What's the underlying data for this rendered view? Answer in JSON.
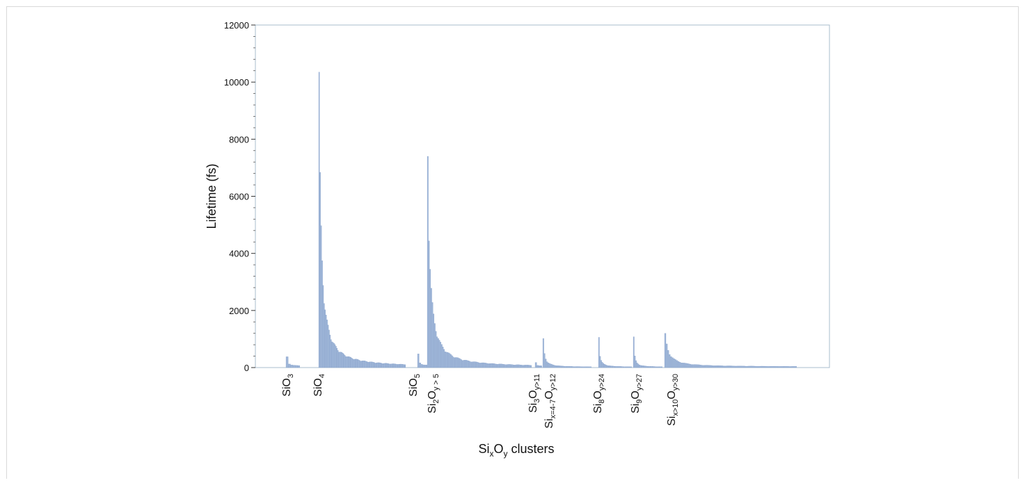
{
  "chart_data": {
    "type": "bar",
    "title": "",
    "xlabel": {
      "base": "Si",
      "sub1": "x",
      "mid": "O",
      "sub2": "y",
      "rest": " clusters"
    },
    "ylabel": "Lifetime (fs)",
    "ylim": [
      0,
      12000
    ],
    "yticks": [
      0,
      2000,
      4000,
      6000,
      8000,
      10000,
      12000
    ],
    "grid": false,
    "legend": "none",
    "bar_color": "#9fb6d8",
    "bar_edge_color": "#7f9bc7",
    "groups": [
      {
        "label": "SiO3",
        "base": "SiO",
        "sub1": "3",
        "mid": "",
        "sub2": "",
        "peak": 380,
        "tail": 60,
        "decay": "fast"
      },
      {
        "label": "SiO4",
        "base": "SiO",
        "sub1": "4",
        "mid": "",
        "sub2": "",
        "peak": 10350,
        "tail": 20,
        "decay": "slow"
      },
      {
        "label": "SiO5",
        "base": "SiO",
        "sub1": "5",
        "mid": "",
        "sub2": "",
        "peak": 480,
        "tail": 80,
        "decay": "fast"
      },
      {
        "label": "Si2Oy>5",
        "base": "Si",
        "sub1": "2",
        "mid": "O",
        "sub2": "y > 5",
        "peak": 7400,
        "tail": 20,
        "decay": "slow"
      },
      {
        "label": "Si3Oy>11",
        "base": "Si",
        "sub1": "3",
        "mid": "O",
        "sub2": "y>11",
        "peak": 180,
        "tail": 60,
        "decay": "fast"
      },
      {
        "label": "Six=4-7Oy>12",
        "base": "Si",
        "sub1": "x=4-7",
        "mid": "O",
        "sub2": "y>12",
        "peak": 1020,
        "tail": 20,
        "decay": "medium"
      },
      {
        "label": "Si8Oy>24",
        "base": "Si",
        "sub1": "8",
        "mid": "O",
        "sub2": "y>24",
        "peak": 1060,
        "tail": 20,
        "decay": "medium"
      },
      {
        "label": "Si9Oy>27",
        "base": "Si",
        "sub1": "9",
        "mid": "O",
        "sub2": "y>27",
        "peak": 1080,
        "tail": 20,
        "decay": "medium"
      },
      {
        "label": "Six>10Oy>30",
        "base": "Si",
        "sub1": "x>10",
        "mid": "O",
        "sub2": "y>30",
        "peak": 1200,
        "tail": 30,
        "decay": "medium"
      }
    ]
  }
}
